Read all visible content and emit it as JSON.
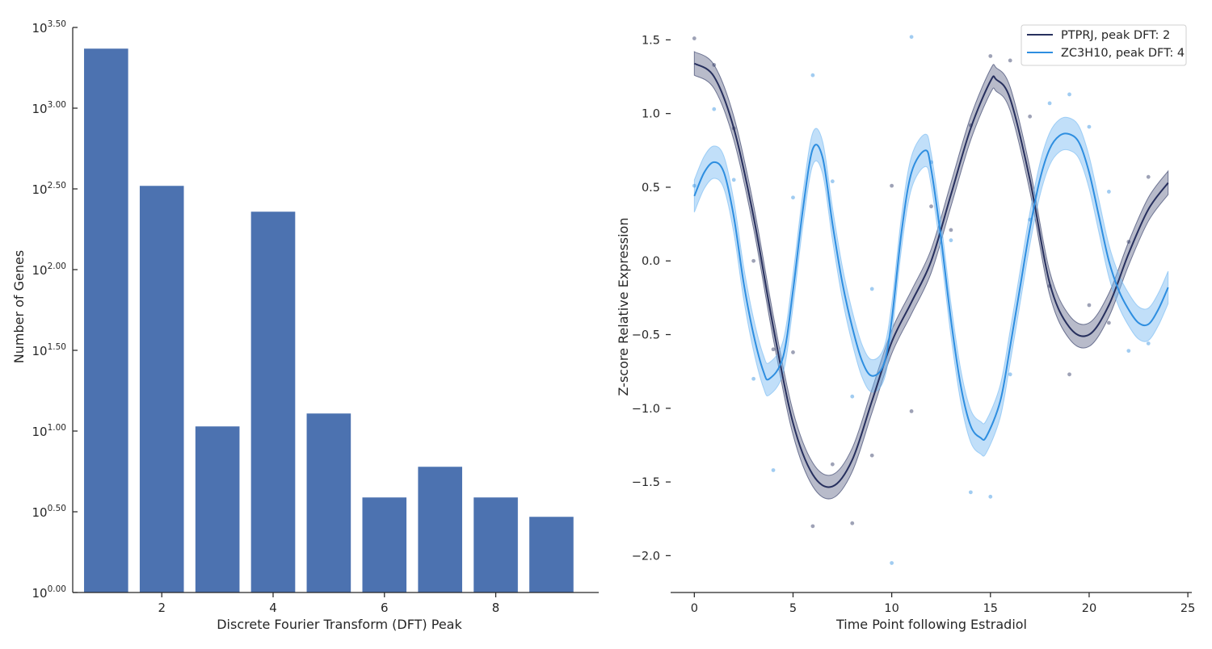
{
  "chart_data": [
    {
      "type": "bar",
      "xlabel": "Discrete Fourier Transform (DFT) Peak",
      "ylabel": "Number of Genes",
      "yscale": "log10",
      "ylim_log10": [
        0,
        3.5
      ],
      "xlim": [
        0.4,
        9.85
      ],
      "x_ticks": [
        2,
        4,
        6,
        8
      ],
      "x_tick_labels": [
        "2",
        "4",
        "6",
        "8"
      ],
      "y_ticks_log10": [
        0,
        0.5,
        1.0,
        1.5,
        2.0,
        2.5,
        3.0,
        3.5
      ],
      "y_tick_mantissa": [
        "0.00",
        "0.50",
        "1.00",
        "1.50",
        "2.00",
        "2.50",
        "3.00",
        "3.50"
      ],
      "y_tick_base": "10",
      "categories": [
        1,
        2,
        3,
        4,
        5,
        6,
        7,
        8,
        9
      ],
      "values_log10": [
        3.37,
        2.52,
        1.03,
        2.36,
        1.11,
        0.59,
        0.78,
        0.59,
        0.47
      ],
      "bar_color": "#4c72b0"
    },
    {
      "type": "line",
      "xlabel": "Time Point following Estradiol",
      "ylabel": "Z-score Relative Expression",
      "xlim": [
        -1.2,
        25.2
      ],
      "ylim": [
        -2.25,
        1.65
      ],
      "x_ticks": [
        0,
        5,
        10,
        15,
        20,
        25
      ],
      "x_tick_labels": [
        "0",
        "5",
        "10",
        "15",
        "20",
        "25"
      ],
      "y_ticks": [
        1.5,
        1.0,
        0.5,
        0.0,
        -0.5,
        -1.0,
        -1.5,
        -2.0
      ],
      "y_tick_labels": [
        "1.5",
        "1.0",
        "0.5",
        "0.0",
        "−0.5",
        "−1.0",
        "−1.5",
        "−2.0"
      ],
      "legend_position": "top-right",
      "series": [
        {
          "name": "PTPRJ, peak DFT: 2",
          "color": "#27305e",
          "band_color": "#27305e",
          "curve_x": [
            0,
            1,
            2,
            3,
            4,
            5,
            6,
            7,
            8,
            9,
            10,
            11,
            12,
            13,
            14,
            15,
            15.3,
            16,
            17,
            18,
            19,
            20,
            21,
            22,
            23,
            24
          ],
          "curve_y": [
            1.34,
            1.25,
            0.9,
            0.3,
            -0.45,
            -1.1,
            -1.45,
            -1.53,
            -1.35,
            -0.95,
            -0.55,
            -0.28,
            0.0,
            0.45,
            0.9,
            1.22,
            1.23,
            1.1,
            0.55,
            -0.15,
            -0.45,
            -0.5,
            -0.3,
            0.05,
            0.35,
            0.53
          ],
          "band_width": 0.08,
          "points_x": [
            0,
            1,
            2,
            3,
            4,
            5,
            6,
            7,
            8,
            9,
            10,
            11,
            12,
            13,
            14,
            15,
            16,
            17,
            18,
            19,
            20,
            21,
            22,
            23
          ],
          "points_y": [
            1.51,
            1.33,
            0.9,
            0.0,
            -0.6,
            -0.62,
            -1.8,
            -1.38,
            -1.78,
            -1.32,
            0.51,
            -1.02,
            0.37,
            0.21,
            0.92,
            1.39,
            1.36,
            0.98,
            -0.17,
            -0.77,
            -0.3,
            -0.42,
            0.13,
            0.57
          ]
        },
        {
          "name": "ZC3H10, peak DFT: 4",
          "color": "#2e8ee0",
          "band_color": "#75b9f2",
          "curve_x": [
            0,
            0.5,
            1,
            1.5,
            2,
            2.5,
            3,
            3.5,
            3.8,
            4.5,
            5,
            5.5,
            6,
            6.5,
            7,
            7.5,
            8,
            8.5,
            9,
            9.6,
            10,
            10.5,
            11,
            11.7,
            12,
            12.5,
            13,
            13.5,
            14,
            14.5,
            14.8,
            15.5,
            16,
            16.5,
            17,
            17.5,
            18,
            18.5,
            19,
            19.5,
            20,
            20.5,
            21,
            21.5,
            22,
            22.5,
            23,
            23.5,
            24
          ],
          "curve_y": [
            0.44,
            0.6,
            0.67,
            0.6,
            0.3,
            -0.15,
            -0.5,
            -0.75,
            -0.8,
            -0.65,
            -0.2,
            0.35,
            0.76,
            0.7,
            0.25,
            -0.15,
            -0.45,
            -0.68,
            -0.78,
            -0.7,
            -0.4,
            0.2,
            0.6,
            0.75,
            0.62,
            0.15,
            -0.4,
            -0.85,
            -1.12,
            -1.2,
            -1.19,
            -0.95,
            -0.58,
            -0.18,
            0.22,
            0.55,
            0.76,
            0.85,
            0.86,
            0.8,
            0.6,
            0.3,
            0.0,
            -0.2,
            -0.33,
            -0.42,
            -0.43,
            -0.33,
            -0.18
          ],
          "band_width": 0.11,
          "points_x": [
            0,
            1,
            2,
            3,
            4,
            5,
            6,
            7,
            8,
            9,
            10,
            11,
            12,
            13,
            14,
            15,
            16,
            17,
            18,
            19,
            20,
            21,
            22,
            23
          ],
          "points_y": [
            0.51,
            1.03,
            0.55,
            -0.8,
            -1.42,
            0.43,
            1.26,
            0.54,
            -0.92,
            -0.19,
            -2.05,
            1.52,
            0.67,
            0.14,
            -1.57,
            -1.6,
            -0.77,
            0.28,
            1.07,
            1.13,
            0.91,
            0.47,
            -0.61,
            -0.56
          ]
        }
      ]
    }
  ]
}
